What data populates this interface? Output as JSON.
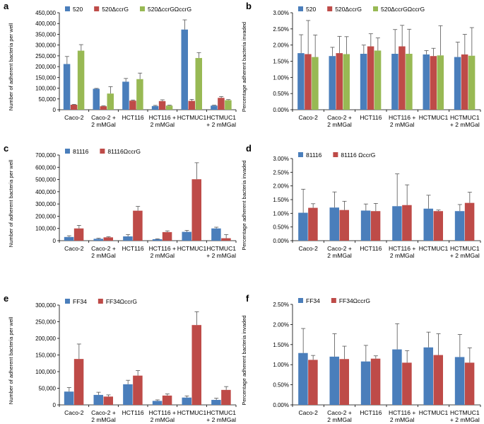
{
  "figure": {
    "colors": [
      "#4a7ebb",
      "#be4b48",
      "#98b954"
    ],
    "error_color": "#555555"
  },
  "chart_data": [
    {
      "panel": "a",
      "type": "bar",
      "categories": [
        "Caco-2",
        "Caco-2 +\n2 mMGal",
        "HCT116",
        "HCT116 +\n2 mMGal",
        "HCTMUC1",
        "HCTMUC1\n+ 2 mMGal"
      ],
      "series": [
        {
          "name": "520",
          "values": [
            212000,
            97000,
            130000,
            17000,
            372000,
            19000
          ],
          "errors": [
            35000,
            2000,
            15000,
            3000,
            45000,
            2000
          ]
        },
        {
          "name": "520ΔccrG",
          "values": [
            23000,
            16000,
            42000,
            40000,
            41000,
            55000
          ],
          "errors": [
            2000,
            2000,
            3000,
            6000,
            7000,
            6000
          ]
        },
        {
          "name": "520ΔccrGΩccrG",
          "values": [
            274000,
            75000,
            142000,
            19000,
            240000,
            44000
          ],
          "errors": [
            28000,
            32000,
            28000,
            2000,
            25000,
            3000
          ]
        }
      ],
      "ylabel": "Number of adherent bacteria per well",
      "ylim": [
        0,
        450000
      ],
      "yticks": [
        "0",
        "50,000",
        "100,000",
        "150,000",
        "200,000",
        "250,000",
        "300,000",
        "350,000",
        "400,000",
        "450,000"
      ]
    },
    {
      "panel": "b",
      "type": "bar",
      "categories": [
        "Caco-2",
        "Caco-2 +\n2 mMGal",
        "HCT116",
        "HCT116 +\n2 mMGal",
        "HCTMUC1",
        "HCTMUC1\n+ 2 mMGal"
      ],
      "series": [
        {
          "name": "520",
          "values": [
            1.75,
            1.66,
            1.73,
            1.73,
            1.71,
            1.63
          ],
          "errors": [
            0.57,
            0.27,
            0.27,
            0.75,
            0.12,
            0.46
          ]
        },
        {
          "name": "520ΔccrG",
          "values": [
            1.72,
            1.75,
            1.96,
            1.96,
            1.66,
            1.71
          ],
          "errors": [
            1.04,
            0.52,
            0.39,
            0.65,
            0.24,
            0.62
          ]
        },
        {
          "name": "520ΔccrGΩccrG",
          "values": [
            1.63,
            1.72,
            1.83,
            1.73,
            1.68,
            1.67
          ],
          "errors": [
            0.68,
            0.54,
            0.39,
            0.76,
            0.92,
            0.87
          ]
        }
      ],
      "ylabel": "Percentage adherent bacteria invaded",
      "ylim": [
        0,
        3.0
      ],
      "yticks": [
        "0.00%",
        "0.50%",
        "1.00%",
        "1.50%",
        "2.00%",
        "2.50%",
        "3.00%"
      ]
    },
    {
      "panel": "c",
      "type": "bar",
      "categories": [
        "Caco-2",
        "Caco-2 +\n2 mMGal",
        "HCT116",
        "HCT116 +\n2 mMGal",
        "HCTMUC1",
        "HCTMUC1\n+ 2 mMGal"
      ],
      "series": [
        {
          "name": "81116",
          "values": [
            30000,
            15000,
            35000,
            12000,
            72000,
            100000
          ],
          "errors": [
            10000,
            5000,
            15000,
            3000,
            12000,
            10000
          ]
        },
        {
          "name": "81116ΩccrG",
          "values": [
            100000,
            27000,
            245000,
            70000,
            502000,
            20000
          ],
          "errors": [
            25000,
            5000,
            35000,
            10000,
            135000,
            30000
          ]
        }
      ],
      "ylabel": "Number of adherent bacteria per well",
      "ylim": [
        0,
        700000
      ],
      "yticks": [
        "0",
        "100,000",
        "200,000",
        "300,000",
        "400,000",
        "500,000",
        "600,000",
        "700,000"
      ]
    },
    {
      "panel": "d",
      "type": "bar",
      "categories": [
        "Caco-2",
        "Caco-2 +\n2 mMGal",
        "HCT116",
        "HCT116 +\n2 mMGal",
        "HCTMUC1",
        "HCTMUC1\n+ 2 mMGal"
      ],
      "series": [
        {
          "name": "81116",
          "values": [
            1.02,
            1.21,
            1.1,
            1.26,
            1.17,
            1.08
          ],
          "errors": [
            0.86,
            0.57,
            0.24,
            1.18,
            0.49,
            0.24
          ]
        },
        {
          "name": "81116 ΩccrG",
          "values": [
            1.2,
            1.12,
            1.08,
            1.3,
            1.08,
            1.38
          ],
          "errors": [
            0.15,
            0.32,
            0.28,
            0.74,
            0.04,
            0.39
          ]
        }
      ],
      "ylabel": "Percentage adherent bacteria invaded",
      "ylim": [
        0,
        3.0
      ],
      "yticks": [
        "0.00%",
        "0.50%",
        "1.00%",
        "1.50%",
        "2.00%",
        "2.50%",
        "3.00%"
      ]
    },
    {
      "panel": "e",
      "type": "bar",
      "categories": [
        "Caco-2",
        "Caco-2 +\n2 mMGal",
        "HCT116",
        "HCT116 +\n2 mMGal",
        "HCTMUC1",
        "HCTMUC1\n+ 2 mMGal"
      ],
      "series": [
        {
          "name": "FF34",
          "values": [
            40000,
            30000,
            62000,
            12000,
            22000,
            15000
          ],
          "errors": [
            12000,
            8000,
            12000,
            3000,
            5000,
            5000
          ]
        },
        {
          "name": "FF34ΩccrG",
          "values": [
            138000,
            25000,
            88000,
            28000,
            240000,
            45000
          ],
          "errors": [
            45000,
            5000,
            15000,
            5000,
            40000,
            10000
          ]
        }
      ],
      "ylabel": "Number of adherent bacteria per well",
      "ylim": [
        0,
        300000
      ],
      "yticks": [
        "0",
        "50,000",
        "100,000",
        "150,000",
        "200,000",
        "250,000",
        "300,000"
      ]
    },
    {
      "panel": "f",
      "type": "bar",
      "categories": [
        "Caco-2",
        "Caco-2 +\n2 mMGal",
        "HCT116",
        "HCT116 +\n2 mMGal",
        "HCTMUC1",
        "HCTMUC1\n+ 2 mMGal"
      ],
      "series": [
        {
          "name": "FF34",
          "values": [
            1.29,
            1.2,
            1.08,
            1.38,
            1.43,
            1.19
          ],
          "errors": [
            0.61,
            0.57,
            0.4,
            0.64,
            0.38,
            0.56
          ]
        },
        {
          "name": "FF34ΩccrG",
          "values": [
            1.12,
            1.14,
            1.15,
            1.05,
            1.24,
            1.05
          ],
          "errors": [
            0.11,
            0.32,
            0.07,
            0.3,
            0.53,
            0.37
          ]
        }
      ],
      "ylabel": "Percentage adherent bacteria invaded",
      "ylim": [
        0,
        2.5
      ],
      "yticks": [
        "0.00%",
        "0.50%",
        "1.00%",
        "1.50%",
        "2.00%",
        "2.50%"
      ]
    }
  ]
}
